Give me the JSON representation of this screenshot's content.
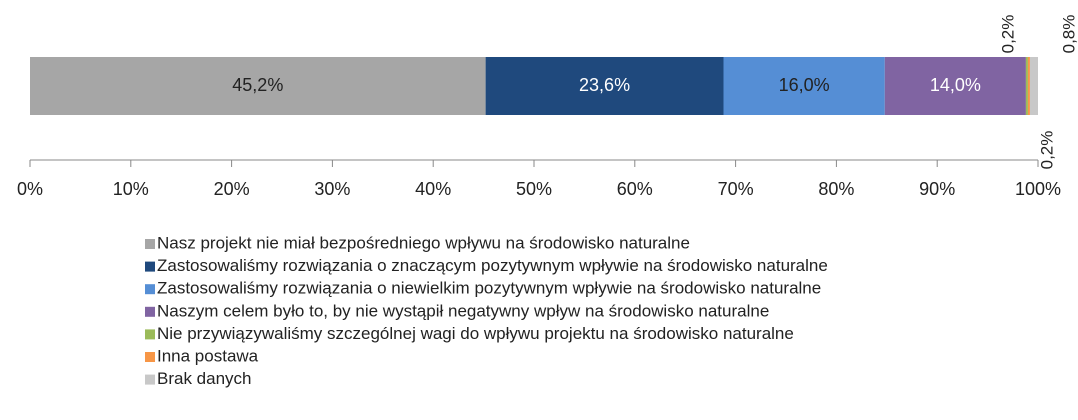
{
  "chart_data": {
    "type": "stacked_bar",
    "orientation": "horizontal",
    "xlim": [
      0,
      100
    ],
    "xticks": [
      {
        "value": 0,
        "label": "0%"
      },
      {
        "value": 10,
        "label": "10%"
      },
      {
        "value": 20,
        "label": "20%"
      },
      {
        "value": 30,
        "label": "30%"
      },
      {
        "value": 40,
        "label": "40%"
      },
      {
        "value": 50,
        "label": "50%"
      },
      {
        "value": 60,
        "label": "60%"
      },
      {
        "value": 70,
        "label": "70%"
      },
      {
        "value": 80,
        "label": "80%"
      },
      {
        "value": 90,
        "label": "90%"
      },
      {
        "value": 100,
        "label": "100%"
      }
    ],
    "legend": "bottom",
    "series": [
      {
        "name": "Nasz projekt nie miał bezpośredniego wpływu na środowisko naturalne",
        "color": "#a6a6a6",
        "values": [
          45.2
        ],
        "value_labels": [
          "45,2%"
        ]
      },
      {
        "name": "Zastosowaliśmy rozwiązania o znaczącym pozytywnym wpływie na środowisko naturalne",
        "color": "#1f497d",
        "values": [
          23.6
        ],
        "value_labels": [
          "23,6%"
        ]
      },
      {
        "name": "Zastosowaliśmy rozwiązania o niewielkim pozytywnym wpływie na środowisko naturalne",
        "color": "#558ed5",
        "values": [
          16.0
        ],
        "value_labels": [
          "16,0%"
        ]
      },
      {
        "name": "Naszym celem było to, by nie wystąpił negatywny wpływ na środowisko naturalne",
        "color": "#8064a2",
        "values": [
          14.0
        ],
        "value_labels": [
          "14,0%"
        ]
      },
      {
        "name": "Nie przywiązywaliśmy szczególnej wagi do wpływu projektu na środowisko naturalne",
        "color": "#9bbb59",
        "values": [
          0.2
        ],
        "value_labels": [
          "0,2%"
        ]
      },
      {
        "name": "Inna postawa",
        "color": "#f79646",
        "values": [
          0.2
        ],
        "value_labels": [
          "0,2%"
        ]
      },
      {
        "name": "Brak danych",
        "color": "#c8c8c8",
        "values": [
          0.8
        ],
        "value_labels": [
          "0,8%"
        ]
      }
    ]
  }
}
